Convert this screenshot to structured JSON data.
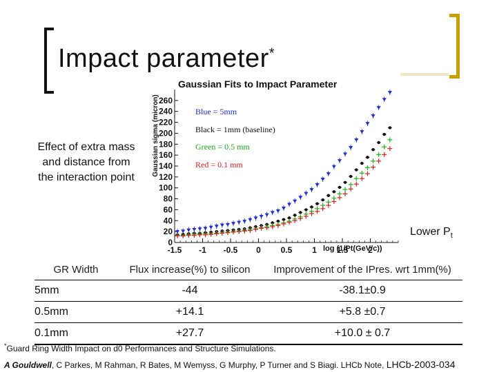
{
  "slide": {
    "title": "Impact parameter",
    "title_mark": "*",
    "side_text": "Effect of extra mass and distance from the interaction point",
    "lower_pt_label": "Lower P",
    "lower_pt_sub": "t"
  },
  "chart_data": {
    "type": "scatter",
    "title": "Gaussian Fits to Impact Parameter",
    "ylabel": "Gaussian sigma (micron)",
    "xlabel": "log (1/Pt(GeV/c))",
    "x_ticks": [
      "-1.5",
      "-1",
      "-0.5",
      "0",
      "0.5",
      "1",
      "1.5",
      "2"
    ],
    "y_ticks": [
      "0",
      "20",
      "40",
      "60",
      "80",
      "100",
      "120",
      "140",
      "160",
      "180",
      "200",
      "220",
      "240",
      "260"
    ],
    "xlim": [
      -1.5,
      2.5
    ],
    "ylim": [
      0,
      280
    ],
    "x": [
      -1.45,
      -1.35,
      -1.25,
      -1.15,
      -1.05,
      -0.95,
      -0.85,
      -0.75,
      -0.65,
      -0.55,
      -0.45,
      -0.35,
      -0.25,
      -0.15,
      -0.05,
      0.05,
      0.15,
      0.25,
      0.35,
      0.45,
      0.55,
      0.65,
      0.75,
      0.85,
      0.95,
      1.05,
      1.15,
      1.25,
      1.35,
      1.45,
      1.55,
      1.65,
      1.75,
      1.85,
      1.95,
      2.05,
      2.15,
      2.25,
      2.35
    ],
    "series": [
      {
        "name": "Blue = 5mm",
        "color": "#1f2fd0",
        "values": [
          20,
          21,
          23,
          24,
          25,
          26,
          28,
          30,
          32,
          33,
          35,
          37,
          39,
          42,
          45,
          48,
          51,
          55,
          58,
          63,
          70,
          76,
          83,
          90,
          97,
          106,
          116,
          126,
          139,
          150,
          162,
          174,
          188,
          203,
          218,
          232,
          247,
          262,
          275
        ]
      },
      {
        "name": "Black = 1mm (baseline)",
        "color": "#111111",
        "values": [
          14,
          15,
          16,
          17,
          17,
          18,
          19,
          20,
          21,
          22,
          23,
          24,
          25,
          27,
          29,
          31,
          33,
          36,
          39,
          42,
          45,
          50,
          55,
          60,
          65,
          71,
          78,
          86,
          93,
          101,
          110,
          121,
          133,
          145,
          156,
          170,
          183,
          198,
          210
        ]
      },
      {
        "name": "Green = 0.5 mm",
        "color": "#18b418",
        "values": [
          13,
          13,
          14,
          15,
          15,
          16,
          16,
          17,
          18,
          19,
          20,
          21,
          22,
          24,
          25,
          27,
          29,
          31,
          33,
          36,
          39,
          43,
          47,
          52,
          57,
          62,
          68,
          74,
          81,
          89,
          97,
          106,
          117,
          127,
          137,
          149,
          161,
          175,
          188
        ]
      },
      {
        "name": "Red = 0.1 mm",
        "color": "#d82020",
        "values": [
          12,
          12,
          13,
          13,
          14,
          14,
          15,
          16,
          17,
          18,
          19,
          20,
          21,
          22,
          24,
          26,
          27,
          29,
          31,
          34,
          37,
          40,
          44,
          48,
          53,
          57,
          62,
          68,
          75,
          82,
          89,
          98,
          107,
          117,
          126,
          138,
          149,
          161,
          172
        ]
      }
    ]
  },
  "table": {
    "headers": [
      "GR Width",
      "Flux increase(%) to silicon",
      "Improvement of the IPres. wrt 1mm(%)"
    ],
    "rows": [
      [
        "5mm",
        "-44",
        "-38.1±0.9"
      ],
      [
        "0.5mm",
        "+14.1",
        "+5.8 ±0.7"
      ],
      [
        "0.1mm",
        "+27.7",
        "+10.0 ± 0.7"
      ]
    ]
  },
  "footnote": {
    "mark": "*",
    "text": "Guard Ring Width Impact on d0 Performances and Structure Simulations."
  },
  "authors": {
    "lead": "A Gouldwell",
    "rest": ", C Parkes, M Rahman, R Bates, M Wemyss, G Murphy, P Turner and S Biagi. LHCb Note, ",
    "code": "LHCb-2003-034"
  }
}
